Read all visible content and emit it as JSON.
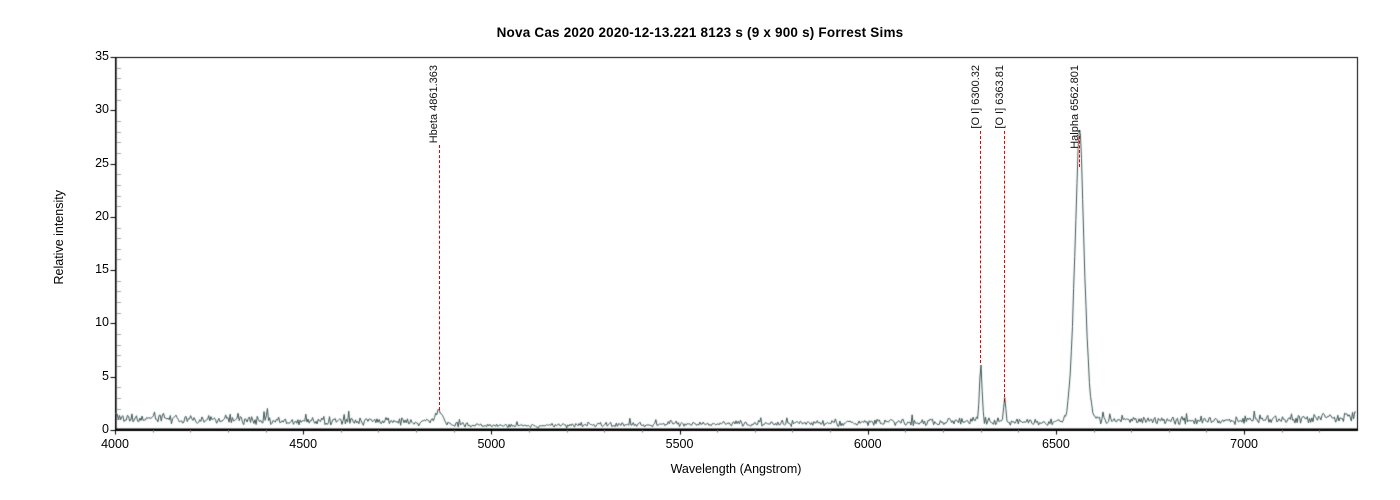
{
  "title": "Nova Cas 2020  2020-12-13.221  8123 s (9 x 900 s)  Forrest Sims",
  "chart_data": {
    "type": "line",
    "title": "Nova Cas 2020  2020-12-13.221  8123 s (9 x 900 s)  Forrest Sims",
    "xlabel": "Wavelength (Angstrom)",
    "ylabel": "Relative intensity",
    "xlim": [
      4000,
      7300
    ],
    "ylim": [
      0,
      35
    ],
    "grid": false,
    "frame": true,
    "legend": "none",
    "x_major_ticks": [
      4000,
      4500,
      5000,
      5500,
      6000,
      6500,
      7000
    ],
    "x_tick_labels": [
      "4000",
      "4500",
      "5000",
      "5500",
      "6000",
      "6500",
      "7000"
    ],
    "x_minor_step": 100,
    "y_major_ticks": [
      0,
      5,
      10,
      15,
      20,
      25,
      30,
      35
    ],
    "y_tick_labels": [
      "0",
      "5",
      "10",
      "15",
      "20",
      "25",
      "30",
      "35"
    ],
    "y_minor_step": 1,
    "colors": {
      "spectrum_line": "#3a5755",
      "annotation_line": "#e80000",
      "text": "#000000",
      "major_tick": "#000000",
      "minor_tick": "#aaaaaa",
      "background": "#ffffff"
    },
    "annotations": [
      {
        "label": "Hbeta 4861.363",
        "wavelength": 4861.363,
        "peak_intensity": 1.9
      },
      {
        "label": "[O I] 6300.32",
        "wavelength": 6300.32,
        "peak_intensity": 6.3
      },
      {
        "label": "[O I] 6363.81",
        "wavelength": 6363.81,
        "peak_intensity": 2.6
      },
      {
        "label": "Halpha 6562.801",
        "wavelength": 6562.801,
        "peak_intensity": 27.6
      }
    ],
    "spectrum_model": {
      "sample_step_angstrom": 3,
      "noise_seed": 20201213,
      "continuum_anchors": [
        [
          4000,
          1.45,
          0.75
        ],
        [
          4060,
          1.15,
          0.6
        ],
        [
          4200,
          1.0,
          0.55
        ],
        [
          4330,
          1.05,
          0.65
        ],
        [
          4430,
          0.85,
          0.5
        ],
        [
          4600,
          0.85,
          0.5
        ],
        [
          4750,
          0.8,
          0.45
        ],
        [
          4830,
          0.75,
          0.4
        ],
        [
          4900,
          0.55,
          0.3
        ],
        [
          5000,
          0.38,
          0.22
        ],
        [
          5150,
          0.4,
          0.25
        ],
        [
          5300,
          0.5,
          0.28
        ],
        [
          5500,
          0.55,
          0.3
        ],
        [
          5700,
          0.6,
          0.3
        ],
        [
          5900,
          0.62,
          0.33
        ],
        [
          6050,
          0.7,
          0.38
        ],
        [
          6200,
          0.75,
          0.4
        ],
        [
          6330,
          0.85,
          0.45
        ],
        [
          6450,
          0.72,
          0.38
        ],
        [
          6530,
          0.8,
          0.4
        ],
        [
          6620,
          0.9,
          0.45
        ],
        [
          6800,
          0.85,
          0.42
        ],
        [
          7000,
          0.95,
          0.45
        ],
        [
          7150,
          1.05,
          0.5
        ],
        [
          7296,
          1.3,
          0.6
        ]
      ],
      "emission_gaussians": [
        {
          "center": 4861.36,
          "amplitude": 1.15,
          "sigma": 9.0
        },
        {
          "center": 6300.32,
          "amplitude": 5.6,
          "sigma": 3.2
        },
        {
          "center": 6363.81,
          "amplitude": 2.0,
          "sigma": 3.2
        },
        {
          "center": 6562.8,
          "amplitude": 22.5,
          "sigma": 14.0
        },
        {
          "center": 6562.8,
          "amplitude": 4.8,
          "sigma": 6.0
        }
      ]
    }
  }
}
